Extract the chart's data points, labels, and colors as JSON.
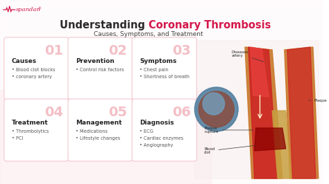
{
  "title_black": "Understanding ",
  "title_red": "Coronary Thrombosis",
  "subtitle": "Causes, Symptoms, and Treatment",
  "background_color": "#ffffff",
  "cards": [
    {
      "number": "01",
      "title": "Causes",
      "bullets": [
        "Blood clot blocks",
        "coronary artery"
      ],
      "col": 0,
      "row": 0
    },
    {
      "number": "02",
      "title": "Prevention",
      "bullets": [
        "Control risk factors"
      ],
      "col": 1,
      "row": 0
    },
    {
      "number": "03",
      "title": "Symptoms",
      "bullets": [
        "Chest pain",
        "Shortness of breath"
      ],
      "col": 2,
      "row": 0
    },
    {
      "number": "04",
      "title": "Treatment",
      "bullets": [
        "Thrombolytics",
        "PCI"
      ],
      "col": 0,
      "row": 1
    },
    {
      "number": "05",
      "title": "Management",
      "bullets": [
        "Medications",
        "Lifestyle changes"
      ],
      "col": 1,
      "row": 1
    },
    {
      "number": "06",
      "title": "Diagnosis",
      "bullets": [
        "ECG",
        "Cardiac enzymes",
        "Angiography"
      ],
      "col": 2,
      "row": 1
    }
  ],
  "card_bg": "#ffffff",
  "card_border": "#f2c0c8",
  "number_color": "#f2b8c0",
  "title_color": "#222222",
  "bullet_color": "#555555",
  "red_color": "#d4174a",
  "pink_bg_left": "#fce8ee",
  "ecg_color": "#d4174a"
}
